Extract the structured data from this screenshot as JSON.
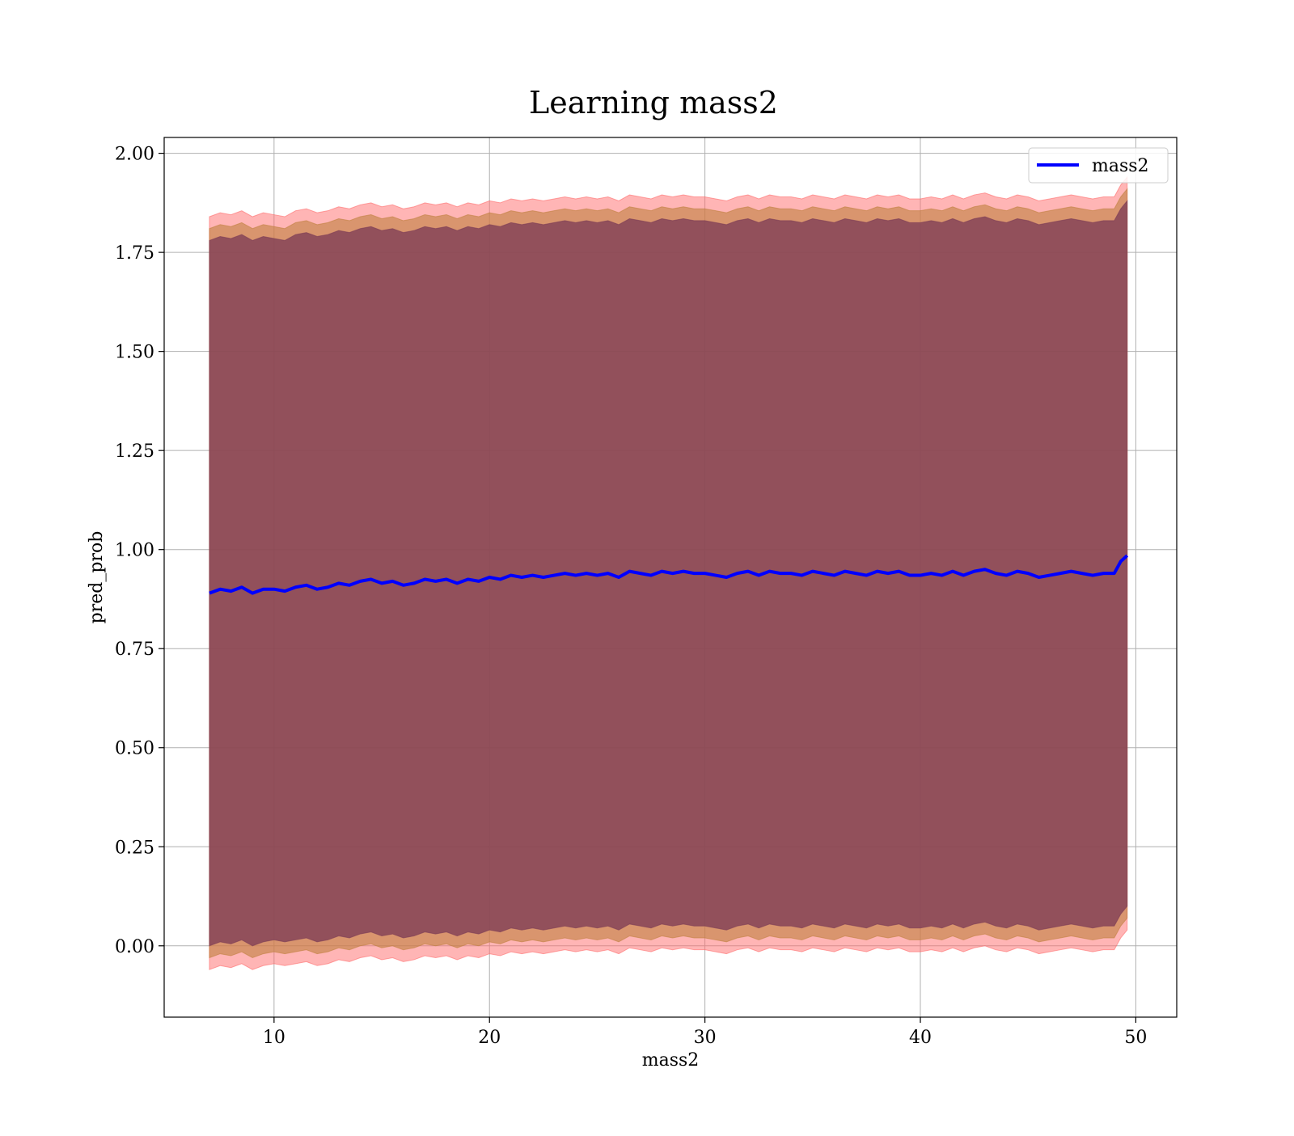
{
  "chart_data": {
    "type": "line",
    "title": "Learning mass2",
    "xlabel": "mass2",
    "ylabel": "pred_prob",
    "xlim": [
      4.9,
      51.9
    ],
    "ylim": [
      -0.18,
      2.04
    ],
    "xticks": [
      10,
      20,
      30,
      40,
      50
    ],
    "xtick_labels": [
      "10",
      "20",
      "30",
      "40",
      "50"
    ],
    "yticks": [
      0.0,
      0.25,
      0.5,
      0.75,
      1.0,
      1.25,
      1.5,
      1.75,
      2.0
    ],
    "ytick_labels": [
      "0.00",
      "0.25",
      "0.50",
      "0.75",
      "1.00",
      "1.25",
      "1.50",
      "1.75",
      "2.00"
    ],
    "grid": true,
    "legend": {
      "position": "top-right",
      "entries": [
        "mass2"
      ]
    },
    "colors": {
      "line": "#0000ff",
      "band_outer": "#ff6b6b",
      "band_middle": "#c08040",
      "band_inner": "#7a3a55",
      "grid": "#b0b0b0",
      "axes": "#000000"
    },
    "series": [
      {
        "name": "mass2",
        "x": [
          7.0,
          7.5,
          8.0,
          8.5,
          9.0,
          9.5,
          10.0,
          10.5,
          11.0,
          11.5,
          12.0,
          12.5,
          13.0,
          13.5,
          14.0,
          14.5,
          15.0,
          15.5,
          16.0,
          16.5,
          17.0,
          17.5,
          18.0,
          18.5,
          19.0,
          19.5,
          20.0,
          20.5,
          21.0,
          21.5,
          22.0,
          22.5,
          23.0,
          23.5,
          24.0,
          24.5,
          25.0,
          25.5,
          26.0,
          26.5,
          27.0,
          27.5,
          28.0,
          28.5,
          29.0,
          29.5,
          30.0,
          30.5,
          31.0,
          31.5,
          32.0,
          32.5,
          33.0,
          33.5,
          34.0,
          34.5,
          35.0,
          35.5,
          36.0,
          36.5,
          37.0,
          37.5,
          38.0,
          38.5,
          39.0,
          39.5,
          40.0,
          40.5,
          41.0,
          41.5,
          42.0,
          42.5,
          43.0,
          43.5,
          44.0,
          44.5,
          45.0,
          45.5,
          46.0,
          46.5,
          47.0,
          47.5,
          48.0,
          48.5,
          49.0,
          49.3,
          49.6
        ],
        "values": [
          0.89,
          0.9,
          0.895,
          0.905,
          0.89,
          0.9,
          0.9,
          0.895,
          0.905,
          0.91,
          0.9,
          0.905,
          0.915,
          0.91,
          0.92,
          0.925,
          0.915,
          0.92,
          0.91,
          0.915,
          0.925,
          0.92,
          0.925,
          0.915,
          0.925,
          0.92,
          0.93,
          0.925,
          0.935,
          0.93,
          0.935,
          0.93,
          0.935,
          0.94,
          0.935,
          0.94,
          0.935,
          0.94,
          0.93,
          0.945,
          0.94,
          0.935,
          0.945,
          0.94,
          0.945,
          0.94,
          0.94,
          0.935,
          0.93,
          0.94,
          0.945,
          0.935,
          0.945,
          0.94,
          0.94,
          0.935,
          0.945,
          0.94,
          0.935,
          0.945,
          0.94,
          0.935,
          0.945,
          0.94,
          0.945,
          0.935,
          0.935,
          0.94,
          0.935,
          0.945,
          0.935,
          0.945,
          0.95,
          0.94,
          0.935,
          0.945,
          0.94,
          0.93,
          0.935,
          0.94,
          0.945,
          0.94,
          0.935,
          0.94,
          0.94,
          0.97,
          0.985
        ]
      },
      {
        "name": "",
        "role": "band_outer",
        "x": [
          7.0,
          7.5,
          8.0,
          8.5,
          9.0,
          9.5,
          10.0,
          10.5,
          11.0,
          11.5,
          12.0,
          12.5,
          13.0,
          13.5,
          14.0,
          14.5,
          15.0,
          15.5,
          16.0,
          16.5,
          17.0,
          17.5,
          18.0,
          18.5,
          19.0,
          19.5,
          20.0,
          20.5,
          21.0,
          21.5,
          22.0,
          22.5,
          23.0,
          23.5,
          24.0,
          24.5,
          25.0,
          25.5,
          26.0,
          26.5,
          27.0,
          27.5,
          28.0,
          28.5,
          29.0,
          29.5,
          30.0,
          30.5,
          31.0,
          31.5,
          32.0,
          32.5,
          33.0,
          33.5,
          34.0,
          34.5,
          35.0,
          35.5,
          36.0,
          36.5,
          37.0,
          37.5,
          38.0,
          38.5,
          39.0,
          39.5,
          40.0,
          40.5,
          41.0,
          41.5,
          42.0,
          42.5,
          43.0,
          43.5,
          44.0,
          44.5,
          45.0,
          45.5,
          46.0,
          46.5,
          47.0,
          47.5,
          48.0,
          48.5,
          49.0,
          49.3,
          49.6
        ],
        "upper": [
          1.84,
          1.85,
          1.845,
          1.855,
          1.84,
          1.85,
          1.845,
          1.84,
          1.855,
          1.86,
          1.85,
          1.855,
          1.865,
          1.86,
          1.87,
          1.875,
          1.865,
          1.87,
          1.86,
          1.865,
          1.875,
          1.87,
          1.875,
          1.865,
          1.875,
          1.87,
          1.88,
          1.875,
          1.885,
          1.88,
          1.885,
          1.88,
          1.885,
          1.89,
          1.885,
          1.89,
          1.885,
          1.89,
          1.88,
          1.895,
          1.89,
          1.885,
          1.895,
          1.89,
          1.895,
          1.89,
          1.89,
          1.885,
          1.88,
          1.89,
          1.895,
          1.885,
          1.895,
          1.89,
          1.89,
          1.885,
          1.895,
          1.89,
          1.885,
          1.895,
          1.89,
          1.885,
          1.895,
          1.89,
          1.895,
          1.885,
          1.885,
          1.89,
          1.885,
          1.895,
          1.885,
          1.895,
          1.9,
          1.89,
          1.885,
          1.895,
          1.89,
          1.88,
          1.885,
          1.89,
          1.895,
          1.89,
          1.885,
          1.89,
          1.89,
          1.92,
          1.94
        ],
        "lower": [
          -0.06,
          -0.05,
          -0.055,
          -0.045,
          -0.06,
          -0.05,
          -0.045,
          -0.05,
          -0.045,
          -0.04,
          -0.05,
          -0.045,
          -0.035,
          -0.04,
          -0.03,
          -0.025,
          -0.035,
          -0.03,
          -0.04,
          -0.035,
          -0.025,
          -0.03,
          -0.025,
          -0.035,
          -0.025,
          -0.03,
          -0.02,
          -0.025,
          -0.015,
          -0.02,
          -0.015,
          -0.02,
          -0.015,
          -0.01,
          -0.015,
          -0.01,
          -0.015,
          -0.01,
          -0.02,
          -0.005,
          -0.01,
          -0.015,
          -0.005,
          -0.01,
          -0.005,
          -0.01,
          -0.01,
          -0.015,
          -0.02,
          -0.01,
          -0.005,
          -0.015,
          -0.005,
          -0.01,
          -0.01,
          -0.015,
          -0.005,
          -0.01,
          -0.015,
          -0.005,
          -0.01,
          -0.015,
          -0.005,
          -0.01,
          -0.005,
          -0.015,
          -0.015,
          -0.01,
          -0.015,
          -0.005,
          -0.015,
          -0.005,
          0.0,
          -0.01,
          -0.015,
          -0.005,
          -0.01,
          -0.02,
          -0.015,
          -0.01,
          -0.005,
          -0.01,
          -0.015,
          -0.01,
          -0.01,
          0.02,
          0.04
        ]
      },
      {
        "name": "",
        "role": "band_middle",
        "x": [
          7.0,
          7.5,
          8.0,
          8.5,
          9.0,
          9.5,
          10.0,
          10.5,
          11.0,
          11.5,
          12.0,
          12.5,
          13.0,
          13.5,
          14.0,
          14.5,
          15.0,
          15.5,
          16.0,
          16.5,
          17.0,
          17.5,
          18.0,
          18.5,
          19.0,
          19.5,
          20.0,
          20.5,
          21.0,
          21.5,
          22.0,
          22.5,
          23.0,
          23.5,
          24.0,
          24.5,
          25.0,
          25.5,
          26.0,
          26.5,
          27.0,
          27.5,
          28.0,
          28.5,
          29.0,
          29.5,
          30.0,
          30.5,
          31.0,
          31.5,
          32.0,
          32.5,
          33.0,
          33.5,
          34.0,
          34.5,
          35.0,
          35.5,
          36.0,
          36.5,
          37.0,
          37.5,
          38.0,
          38.5,
          39.0,
          39.5,
          40.0,
          40.5,
          41.0,
          41.5,
          42.0,
          42.5,
          43.0,
          43.5,
          44.0,
          44.5,
          45.0,
          45.5,
          46.0,
          46.5,
          47.0,
          47.5,
          48.0,
          48.5,
          49.0,
          49.3,
          49.6
        ],
        "upper": [
          1.81,
          1.82,
          1.815,
          1.825,
          1.81,
          1.82,
          1.815,
          1.81,
          1.825,
          1.83,
          1.82,
          1.825,
          1.835,
          1.83,
          1.84,
          1.845,
          1.835,
          1.84,
          1.83,
          1.835,
          1.845,
          1.84,
          1.845,
          1.835,
          1.845,
          1.84,
          1.85,
          1.845,
          1.855,
          1.85,
          1.855,
          1.85,
          1.855,
          1.86,
          1.855,
          1.86,
          1.855,
          1.86,
          1.85,
          1.865,
          1.86,
          1.855,
          1.865,
          1.86,
          1.865,
          1.86,
          1.86,
          1.855,
          1.85,
          1.86,
          1.865,
          1.855,
          1.865,
          1.86,
          1.86,
          1.855,
          1.865,
          1.86,
          1.855,
          1.865,
          1.86,
          1.855,
          1.865,
          1.86,
          1.865,
          1.855,
          1.855,
          1.86,
          1.855,
          1.865,
          1.855,
          1.865,
          1.87,
          1.86,
          1.855,
          1.865,
          1.86,
          1.85,
          1.855,
          1.86,
          1.865,
          1.86,
          1.855,
          1.86,
          1.86,
          1.89,
          1.91
        ],
        "lower": [
          -0.03,
          -0.02,
          -0.025,
          -0.015,
          -0.03,
          -0.02,
          -0.015,
          -0.02,
          -0.015,
          -0.01,
          -0.02,
          -0.015,
          -0.005,
          -0.01,
          0.0,
          0.005,
          -0.005,
          0.0,
          -0.01,
          -0.005,
          0.005,
          0.0,
          0.005,
          -0.005,
          0.005,
          0.0,
          0.01,
          0.005,
          0.015,
          0.01,
          0.015,
          0.01,
          0.015,
          0.02,
          0.015,
          0.02,
          0.015,
          0.02,
          0.01,
          0.025,
          0.02,
          0.015,
          0.025,
          0.02,
          0.025,
          0.02,
          0.02,
          0.015,
          0.01,
          0.02,
          0.025,
          0.015,
          0.025,
          0.02,
          0.02,
          0.015,
          0.025,
          0.02,
          0.015,
          0.025,
          0.02,
          0.015,
          0.025,
          0.02,
          0.025,
          0.015,
          0.015,
          0.02,
          0.015,
          0.025,
          0.015,
          0.025,
          0.03,
          0.02,
          0.015,
          0.025,
          0.02,
          0.01,
          0.015,
          0.02,
          0.025,
          0.02,
          0.015,
          0.02,
          0.02,
          0.05,
          0.07
        ]
      },
      {
        "name": "",
        "role": "band_inner",
        "x": [
          7.0,
          7.5,
          8.0,
          8.5,
          9.0,
          9.5,
          10.0,
          10.5,
          11.0,
          11.5,
          12.0,
          12.5,
          13.0,
          13.5,
          14.0,
          14.5,
          15.0,
          15.5,
          16.0,
          16.5,
          17.0,
          17.5,
          18.0,
          18.5,
          19.0,
          19.5,
          20.0,
          20.5,
          21.0,
          21.5,
          22.0,
          22.5,
          23.0,
          23.5,
          24.0,
          24.5,
          25.0,
          25.5,
          26.0,
          26.5,
          27.0,
          27.5,
          28.0,
          28.5,
          29.0,
          29.5,
          30.0,
          30.5,
          31.0,
          31.5,
          32.0,
          32.5,
          33.0,
          33.5,
          34.0,
          34.5,
          35.0,
          35.5,
          36.0,
          36.5,
          37.0,
          37.5,
          38.0,
          38.5,
          39.0,
          39.5,
          40.0,
          40.5,
          41.0,
          41.5,
          42.0,
          42.5,
          43.0,
          43.5,
          44.0,
          44.5,
          45.0,
          45.5,
          46.0,
          46.5,
          47.0,
          47.5,
          48.0,
          48.5,
          49.0,
          49.3,
          49.6
        ],
        "upper": [
          1.78,
          1.79,
          1.785,
          1.795,
          1.78,
          1.79,
          1.785,
          1.78,
          1.795,
          1.8,
          1.79,
          1.795,
          1.805,
          1.8,
          1.81,
          1.815,
          1.805,
          1.81,
          1.8,
          1.805,
          1.815,
          1.81,
          1.815,
          1.805,
          1.815,
          1.81,
          1.82,
          1.815,
          1.825,
          1.82,
          1.825,
          1.82,
          1.825,
          1.83,
          1.825,
          1.83,
          1.825,
          1.83,
          1.82,
          1.835,
          1.83,
          1.825,
          1.835,
          1.83,
          1.835,
          1.83,
          1.83,
          1.825,
          1.82,
          1.83,
          1.835,
          1.825,
          1.835,
          1.83,
          1.83,
          1.825,
          1.835,
          1.83,
          1.825,
          1.835,
          1.83,
          1.825,
          1.835,
          1.83,
          1.835,
          1.825,
          1.825,
          1.83,
          1.825,
          1.835,
          1.825,
          1.835,
          1.84,
          1.83,
          1.825,
          1.835,
          1.83,
          1.82,
          1.825,
          1.83,
          1.835,
          1.83,
          1.825,
          1.83,
          1.83,
          1.86,
          1.88
        ],
        "lower": [
          0.0,
          0.01,
          0.005,
          0.015,
          0.0,
          0.01,
          0.015,
          0.01,
          0.015,
          0.02,
          0.01,
          0.015,
          0.025,
          0.02,
          0.03,
          0.035,
          0.025,
          0.03,
          0.02,
          0.025,
          0.035,
          0.03,
          0.035,
          0.025,
          0.035,
          0.03,
          0.04,
          0.035,
          0.045,
          0.04,
          0.045,
          0.04,
          0.045,
          0.05,
          0.045,
          0.05,
          0.045,
          0.05,
          0.04,
          0.055,
          0.05,
          0.045,
          0.055,
          0.05,
          0.055,
          0.05,
          0.05,
          0.045,
          0.04,
          0.05,
          0.055,
          0.045,
          0.055,
          0.05,
          0.05,
          0.045,
          0.055,
          0.05,
          0.045,
          0.055,
          0.05,
          0.045,
          0.055,
          0.05,
          0.055,
          0.045,
          0.045,
          0.05,
          0.045,
          0.055,
          0.045,
          0.055,
          0.06,
          0.05,
          0.045,
          0.055,
          0.05,
          0.04,
          0.045,
          0.05,
          0.055,
          0.05,
          0.045,
          0.05,
          0.05,
          0.08,
          0.1
        ]
      }
    ]
  }
}
